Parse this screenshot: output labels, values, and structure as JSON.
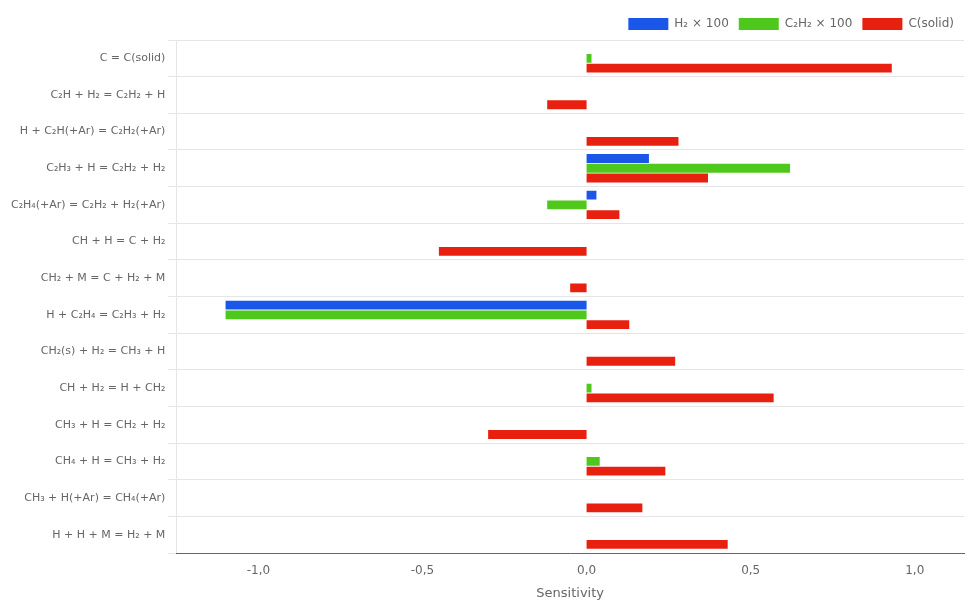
{
  "chart_data": {
    "type": "bar",
    "orientation": "horizontal",
    "categories": [
      "C = C(solid)",
      "C₂H + H₂ = C₂H₂ + H",
      "H + C₂H(+Ar) = C₂H₂(+Ar)",
      "C₂H₃ + H = C₂H₂ + H₂",
      "C₂H₄(+Ar) = C₂H₂ + H₂(+Ar)",
      "CH + H = C + H₂",
      "CH₂ + M = C + H₂ + M",
      "H + C₂H₄ = C₂H₃ + H₂",
      "CH₂(s) + H₂ = CH₃ + H",
      "CH + H₂ = H + CH₂",
      "CH₃ + H = CH₂ + H₂",
      "CH₄ + H = CH₃ + H₂",
      "CH₃ + H(+Ar) = CH₄(+Ar)",
      "H + H + M = H₂ + M"
    ],
    "series": [
      {
        "name": "H₂ × 100",
        "color": "#1a56e8",
        "values": [
          0.0,
          0.0,
          0.0,
          0.19,
          0.03,
          0.0,
          0.0,
          -1.1,
          0.0,
          0.0,
          0.0,
          0.0,
          0.0,
          0.0
        ]
      },
      {
        "name": "C₂H₂ × 100",
        "color": "#4ec81a",
        "values": [
          0.015,
          0.0,
          0.0,
          0.62,
          -0.12,
          0.0,
          0.0,
          -1.1,
          0.0,
          0.015,
          0.0,
          0.04,
          0.0,
          0.0
        ]
      },
      {
        "name": "C(solid)",
        "color": "#e82010",
        "values": [
          0.93,
          -0.12,
          0.28,
          0.37,
          0.1,
          -0.45,
          -0.05,
          0.13,
          0.27,
          0.57,
          -0.3,
          0.24,
          0.17,
          0.43
        ]
      }
    ],
    "xlabel": "Sensitivity",
    "xlim": [
      -1.25,
      1.15
    ],
    "xticks": [
      {
        "value": -1.0,
        "label": "-1,0"
      },
      {
        "value": -0.5,
        "label": "-0,5"
      },
      {
        "value": 0.0,
        "label": "0,0"
      },
      {
        "value": 0.5,
        "label": "0,5"
      },
      {
        "value": 1.0,
        "label": "1,0"
      }
    ],
    "grid": "y",
    "legend": "upper right"
  }
}
